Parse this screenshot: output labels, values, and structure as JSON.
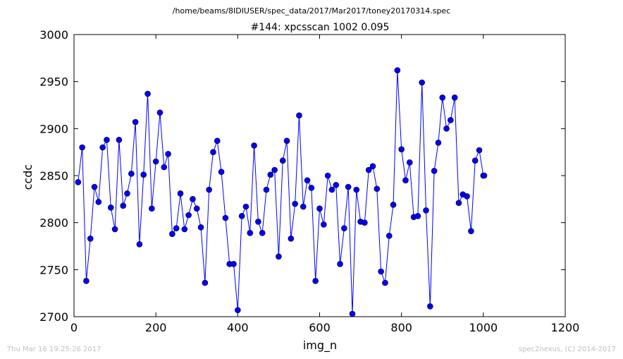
{
  "suptitle": "/home/beams/8IDIUSER/spec_data/2017/Mar2017/toney20170314.spec",
  "footer_left": "Thu Mar 16 19:25:26 2017",
  "footer_right": "spec2nexus, (C) 2014-2017",
  "colors": {
    "series": "#0000ff",
    "frame": "#000000",
    "footer": "#c0c0c0"
  },
  "chart_data": {
    "type": "line",
    "title": "#144: xpcsscan 1002 0.095",
    "xlabel": "img_n",
    "ylabel": "ccdc",
    "xlim": [
      0,
      1200
    ],
    "ylim": [
      2700,
      3000
    ],
    "xticks": [
      0,
      200,
      400,
      600,
      800,
      1000,
      1200
    ],
    "yticks": [
      2700,
      2750,
      2800,
      2850,
      2900,
      2950,
      3000
    ],
    "grid": false,
    "marker": "circle",
    "x": [
      10,
      20,
      30,
      40,
      50,
      60,
      70,
      80,
      90,
      100,
      110,
      120,
      130,
      140,
      150,
      160,
      170,
      180,
      190,
      200,
      210,
      220,
      230,
      240,
      250,
      260,
      270,
      280,
      290,
      300,
      310,
      320,
      330,
      340,
      350,
      360,
      370,
      380,
      390,
      400,
      410,
      420,
      430,
      440,
      450,
      460,
      470,
      480,
      490,
      500,
      510,
      520,
      530,
      540,
      550,
      560,
      570,
      580,
      590,
      600,
      610,
      620,
      630,
      640,
      650,
      660,
      670,
      680,
      690,
      700,
      710,
      720,
      730,
      740,
      750,
      760,
      770,
      780,
      790,
      800,
      810,
      820,
      830,
      840,
      850,
      860,
      870,
      880,
      890,
      900,
      910,
      920,
      930,
      940,
      950,
      960,
      970,
      980,
      990,
      1000,
      1002
    ],
    "y": [
      2843,
      2880,
      2738,
      2783,
      2838,
      2822,
      2880,
      2888,
      2816,
      2793,
      2888,
      2818,
      2831,
      2852,
      2907,
      2777,
      2851,
      2937,
      2815,
      2865,
      2917,
      2859,
      2873,
      2788,
      2794,
      2831,
      2793,
      2808,
      2825,
      2815,
      2795,
      2736,
      2835,
      2875,
      2887,
      2854,
      2805,
      2756,
      2756,
      2707,
      2807,
      2817,
      2789,
      2882,
      2801,
      2789,
      2835,
      2851,
      2856,
      2764,
      2866,
      2887,
      2783,
      2820,
      2914,
      2817,
      2845,
      2837,
      2738,
      2815,
      2798,
      2850,
      2835,
      2840,
      2756,
      2794,
      2838,
      2703,
      2835,
      2801,
      2800,
      2856,
      2860,
      2836,
      2748,
      2736,
      2786,
      2819,
      2962,
      2878,
      2845,
      2864,
      2806,
      2807,
      2949,
      2813,
      2711,
      2855,
      2885,
      2933,
      2900,
      2909,
      2933,
      2821,
      2830,
      2828,
      2791,
      2866,
      2877,
      2850,
      2850
    ]
  }
}
